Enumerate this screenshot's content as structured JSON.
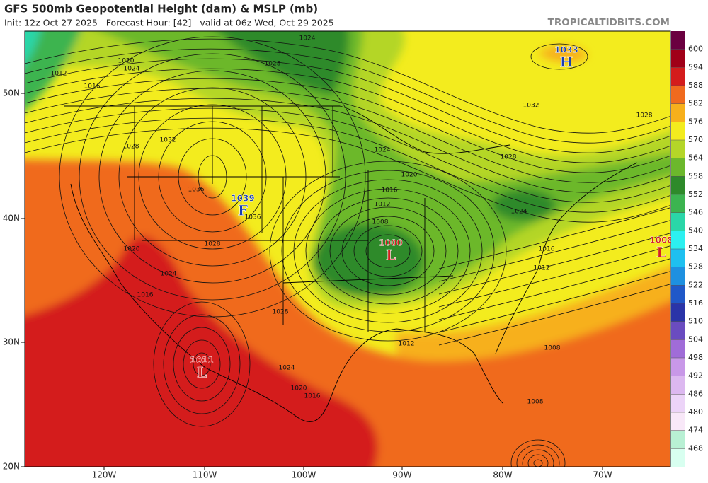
{
  "header": {
    "title": "GFS 500mb Geopotential Height (dam) & MSLP (mb)",
    "subtitle": "Init: 12z Oct 27 2025   Forecast Hour: [42]   valid at 06z Wed, Oct 29 2025",
    "site": "TROPICALTIDBITS.COM"
  },
  "map": {
    "lat_labels": [
      "50N",
      "40N",
      "30N",
      "20N"
    ],
    "lon_labels": [
      "120W",
      "110W",
      "100W",
      "90W",
      "80W",
      "70W"
    ],
    "pressure_centers": [
      {
        "letter": "H",
        "pressure": "1033",
        "color": "#1a3fb0"
      },
      {
        "letter": "F",
        "pressure": "1039",
        "color": "#1a3fb0"
      },
      {
        "letter": "L",
        "pressure": "1000",
        "color": "#d42020"
      },
      {
        "letter": "L",
        "pressure": "1011",
        "color": "#d42020"
      },
      {
        "letter": "L",
        "pressure": "1008",
        "color": "#d42020"
      }
    ],
    "isobar_labels": [
      "1012",
      "1016",
      "1020",
      "1024",
      "1024",
      "1028",
      "1032",
      "1028",
      "1036",
      "1036",
      "1028",
      "1020",
      "1024",
      "1016",
      "1028",
      "1024",
      "1020",
      "1016",
      "1012",
      "1008",
      "1012",
      "1016",
      "1020",
      "1024",
      "1028",
      "1032",
      "1028",
      "1024",
      "1016",
      "1012",
      "1008",
      "1008"
    ]
  },
  "colorbar": {
    "labels": [
      "600",
      "594",
      "588",
      "582",
      "576",
      "570",
      "564",
      "558",
      "552",
      "546",
      "540",
      "534",
      "528",
      "522",
      "516",
      "510",
      "504",
      "498",
      "492",
      "486",
      "480",
      "474",
      "468"
    ],
    "colors": [
      "#6a0040",
      "#a00018",
      "#d41c1c",
      "#f06a1e",
      "#f7b01c",
      "#f3ec1e",
      "#b4d628",
      "#6cb82c",
      "#2e8a2a",
      "#3cb450",
      "#2ad6a8",
      "#2cf0f0",
      "#1ec0f0",
      "#1e90e0",
      "#2058c8",
      "#2a34a8",
      "#6a4cc0",
      "#a06cd8",
      "#c898e8",
      "#dcb8f0",
      "#ecd4f8",
      "#f8e8f8",
      "#b8f0d4"
    ]
  }
}
